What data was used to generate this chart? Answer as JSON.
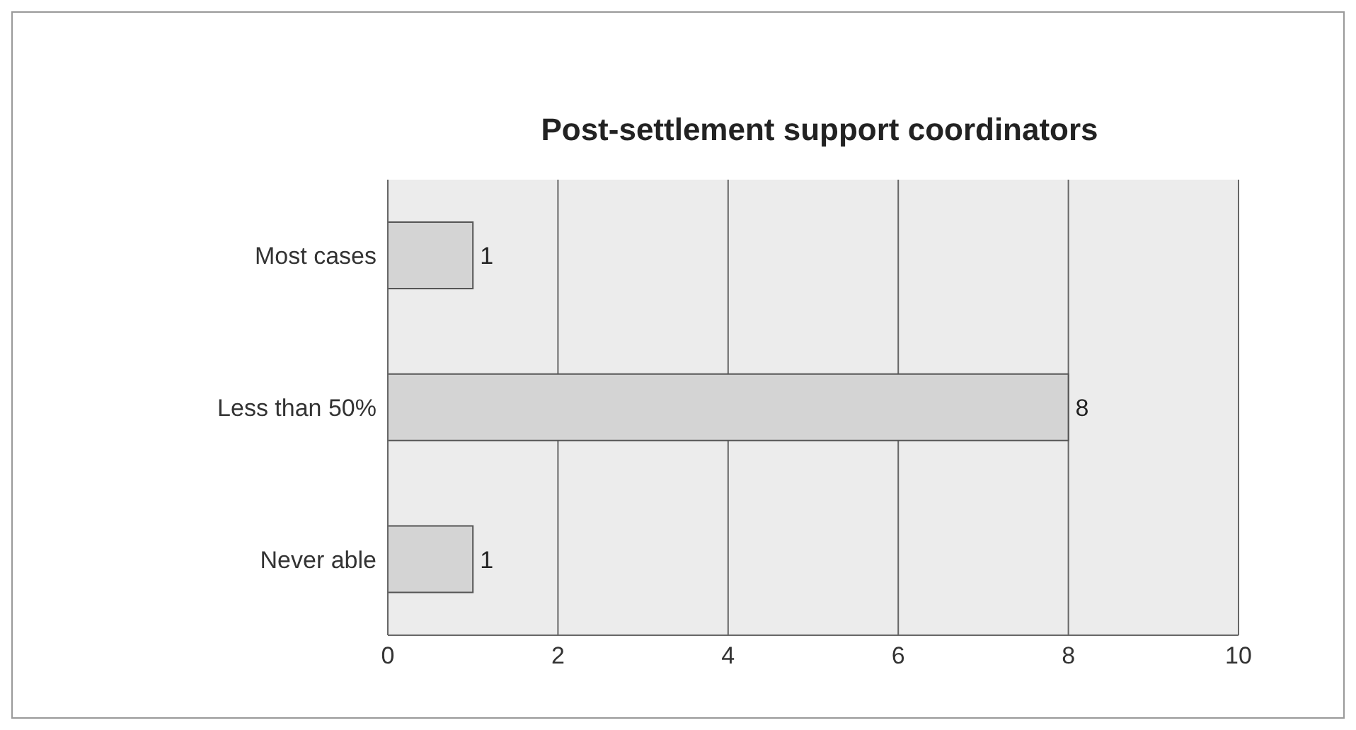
{
  "chart_data": {
    "type": "bar",
    "orientation": "horizontal",
    "title": "Post-settlement support coordinators",
    "categories": [
      "Most cases",
      "Less than 50%",
      "Never able"
    ],
    "values": [
      1,
      8,
      1
    ],
    "color": "#d4d4d4",
    "xlim": [
      0,
      10
    ],
    "xticks": [
      0,
      2,
      4,
      6,
      8,
      10
    ],
    "grid": "x",
    "data_labels": true
  }
}
